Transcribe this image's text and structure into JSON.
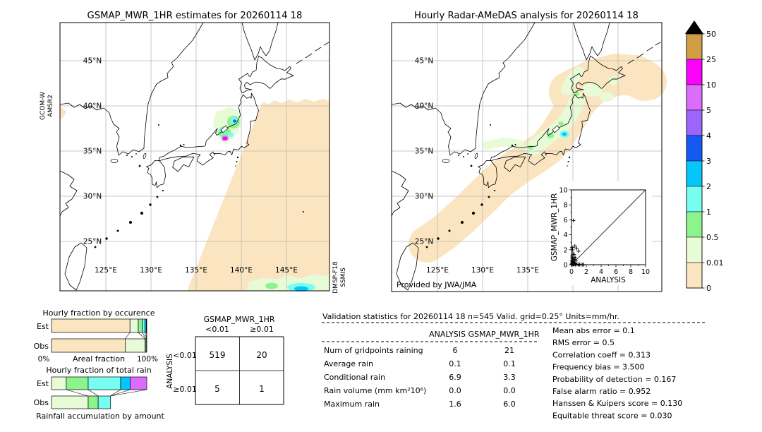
{
  "figure": {
    "left_map": {
      "title": "GSMAP_MWR_1HR estimates for 20260114 18",
      "sensor_label": [
        "GCOM-W",
        "AMSR2"
      ],
      "swath_sensor_label": [
        "DMSP-F18",
        "SSMIS"
      ],
      "lat_tick_labels": [
        "45°N",
        "40°N",
        "35°N",
        "30°N",
        "25°N"
      ],
      "lon_tick_labels": [
        "125°E",
        "130°E",
        "135°E",
        "140°E",
        "145°E"
      ]
    },
    "right_map": {
      "title": "Hourly Radar-AMeDAS analysis for 20260114 18",
      "credit": "Provided by JWA/JMA",
      "lat_tick_labels": [
        "45°N",
        "40°N",
        "35°N",
        "30°N",
        "25°N"
      ],
      "lon_tick_labels": [
        "125°E",
        "130°E",
        "135°E"
      ]
    },
    "colorbar": {
      "tick_labels": [
        "50",
        "25",
        "10",
        "5",
        "4",
        "3",
        "2",
        "1",
        "0.5",
        "0.01",
        "0"
      ],
      "segment_colors_top_to_bottom": [
        "#D19D42",
        "#FB02FB",
        "#DC6CFC",
        "#9C66FC",
        "#1459F2",
        "#06C5FB",
        "#78FEF0",
        "#8DF38D",
        "#E6FBD6",
        "#FBE5C0"
      ],
      "over_arrow_color": "#000000"
    }
  },
  "chart_data": [
    {
      "id": "occurrence_fractions",
      "type": "bar",
      "stacked": true,
      "title": "Hourly fraction by occurence",
      "xlabel": "Areal fraction",
      "x_axis_end_labels": [
        "0%",
        "100%"
      ],
      "categories": [
        "Est",
        "Obs"
      ],
      "units": "percent of area",
      "series": [
        {
          "name": "Est",
          "segments": [
            {
              "rain_class": "0-0.01",
              "color": "#FBE5C0",
              "pct": 82.4
            },
            {
              "rain_class": "0.01-0.5",
              "color": "#E6FBD6",
              "pct": 8.7
            },
            {
              "rain_class": "0.5-1",
              "color": "#8DF38D",
              "pct": 4.2
            },
            {
              "rain_class": "1-2",
              "color": "#78FEF0",
              "pct": 2.7
            },
            {
              "rain_class": "2-3",
              "color": "#06C5FB",
              "pct": 1.5
            },
            {
              "rain_class": "3-4",
              "color": "#1459F2",
              "pct": 0.5
            }
          ]
        },
        {
          "name": "Obs",
          "segments": [
            {
              "rain_class": "0-0.01",
              "color": "#FBE5C0",
              "pct": 77.3
            },
            {
              "rain_class": "0.01-0.5",
              "color": "#E6FBD6",
              "pct": 21.0
            },
            {
              "rain_class": "0.5-1",
              "color": "#8DF38D",
              "pct": 1.0
            },
            {
              "rain_class": "1-2",
              "color": "#78FEF0",
              "pct": 0.7
            }
          ]
        }
      ]
    },
    {
      "id": "total_rain_fractions",
      "type": "bar",
      "stacked": true,
      "title": "Hourly fraction of total rain",
      "caption": "Rainfall accumulation by amount",
      "categories": [
        "Est",
        "Obs"
      ],
      "units": "percent of total rain",
      "series": [
        {
          "name": "Est",
          "segments": [
            {
              "rain_class": "0.01-0.5",
              "color": "#E6FBD6",
              "pct": 15.5
            },
            {
              "rain_class": "0.5-1",
              "color": "#8DF38D",
              "pct": 23.0
            },
            {
              "rain_class": "1-2",
              "color": "#78FEF0",
              "pct": 34.0
            },
            {
              "rain_class": "2-3",
              "color": "#06C5FB",
              "pct": 10.0
            },
            {
              "rain_class": "5-10",
              "color": "#DC6CFC",
              "pct": 17.5
            }
          ]
        },
        {
          "name": "Obs",
          "segments": [
            {
              "rain_class": "0.01-0.5",
              "color": "#E6FBD6",
              "pct": 38.5
            },
            {
              "rain_class": "0.5-1",
              "color": "#8DF38D",
              "pct": 10.5
            },
            {
              "rain_class": "1-2",
              "color": "#78FEF0",
              "pct": 13.0
            }
          ]
        }
      ]
    },
    {
      "id": "contingency_table",
      "type": "table",
      "col_axis_title": "GSMAP_MWR_1HR",
      "row_axis_title": "ANALYSIS",
      "col_labels": [
        "<0.01",
        "≥0.01"
      ],
      "row_labels": [
        "<0.01",
        "≥0.01"
      ],
      "values": [
        [
          "519",
          "20"
        ],
        [
          "5",
          "1"
        ]
      ]
    },
    {
      "id": "inset_scatter",
      "type": "scatter",
      "xlabel": "ANALYSIS",
      "ylabel": "GSMAP_MWR_1HR",
      "xlim": [
        0,
        10
      ],
      "ylim": [
        0,
        10
      ],
      "x_ticks": [
        "0",
        "2",
        "4",
        "6",
        "8",
        "10"
      ],
      "y_ticks": [
        "0",
        "2",
        "4",
        "6",
        "8",
        "10"
      ],
      "identity_line": true,
      "marker": "+",
      "points": [
        [
          0.25,
          5.9
        ],
        [
          0.1,
          2.3
        ],
        [
          0.45,
          2.5
        ],
        [
          0.7,
          2.2
        ],
        [
          0.15,
          2.0
        ],
        [
          0.95,
          1.8
        ],
        [
          0.2,
          1.55
        ],
        [
          0.35,
          1.35
        ],
        [
          0.1,
          1.15
        ],
        [
          0.3,
          1.0
        ],
        [
          0.5,
          0.95
        ],
        [
          0.15,
          0.8
        ],
        [
          0.4,
          0.7
        ],
        [
          0.05,
          0.6
        ],
        [
          0.25,
          0.55
        ],
        [
          0.6,
          0.5
        ],
        [
          0.1,
          0.45
        ],
        [
          0.2,
          0.35
        ],
        [
          0.35,
          0.3
        ],
        [
          0.05,
          0.25
        ],
        [
          0.15,
          0.2
        ],
        [
          0.45,
          0.15
        ],
        [
          0.05,
          0.1
        ],
        [
          0.25,
          0.1
        ],
        [
          0.1,
          0.05
        ],
        [
          0.35,
          0.05
        ],
        [
          0.55,
          0.08
        ],
        [
          0.05,
          0.02
        ],
        [
          0.2,
          0.02
        ],
        [
          0.5,
          0.02
        ],
        [
          0.75,
          0.05
        ],
        [
          0.9,
          0.03
        ],
        [
          1.1,
          0.03
        ],
        [
          1.3,
          0.02
        ],
        [
          1.5,
          0.02
        ],
        [
          1.65,
          0.02
        ]
      ]
    }
  ],
  "validation": {
    "header": "Validation statistics for 20260114 18  n=545 Valid. grid=0.25° Units=mm/hr.",
    "column_headers": [
      "ANALYSIS",
      "GSMAP_MWR_1HR"
    ],
    "rows": [
      {
        "label": "Num of gridpoints raining",
        "analysis": "6",
        "gsmap": "21"
      },
      {
        "label": "Average rain",
        "analysis": "0.1",
        "gsmap": "0.1"
      },
      {
        "label": "Conditional rain",
        "analysis": "6.9",
        "gsmap": "3.3"
      },
      {
        "label": "Rain volume (mm km²10⁶)",
        "analysis": "0.0",
        "gsmap": "0.0"
      },
      {
        "label": "Maximum rain",
        "analysis": "1.6",
        "gsmap": "6.0"
      }
    ],
    "scores": [
      {
        "label": "Mean abs error",
        "value": "0.1"
      },
      {
        "label": "RMS error",
        "value": "0.5"
      },
      {
        "label": "Correlation coeff",
        "value": "0.313"
      },
      {
        "label": "Frequency bias",
        "value": "3.500"
      },
      {
        "label": "Probability of detection",
        "value": "0.167"
      },
      {
        "label": "False alarm ratio",
        "value": "0.952"
      },
      {
        "label": "Hanssen & Kuipers score",
        "value": "0.130"
      },
      {
        "label": "Equitable threat score",
        "value": "0.030"
      }
    ]
  }
}
